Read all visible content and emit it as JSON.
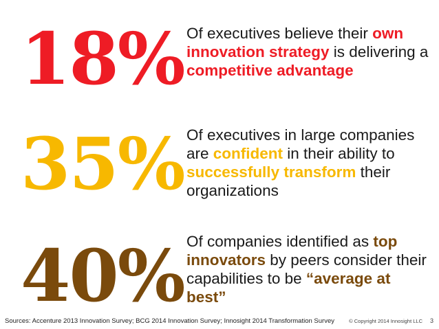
{
  "colors": {
    "red": "#ee1c25",
    "gold": "#f7b800",
    "brown": "#7a4a0c",
    "text": "#1a1a1a"
  },
  "stats": [
    {
      "value": "18%",
      "parts": [
        "Of executives believe their ",
        "own innovation strategy",
        " is delivering a ",
        "competitive advantage"
      ]
    },
    {
      "value": "35%",
      "parts": [
        "Of executives in large companies are ",
        "confident",
        " in their ability to ",
        "successfully transform",
        " their organizations"
      ]
    },
    {
      "value": "40%",
      "parts": [
        "Of companies identified as ",
        "top innovators",
        " by peers consider their capabilities to be ",
        "“average at best”"
      ]
    }
  ],
  "footer": {
    "sources": "Sources: Accenture  2013 Innovation Survey; BCG 2014 Innovation Survey; Innosight 2014 Transformation Survey",
    "copyright": "© Copyright 2014 Innosight LLC",
    "page_number": "3"
  }
}
